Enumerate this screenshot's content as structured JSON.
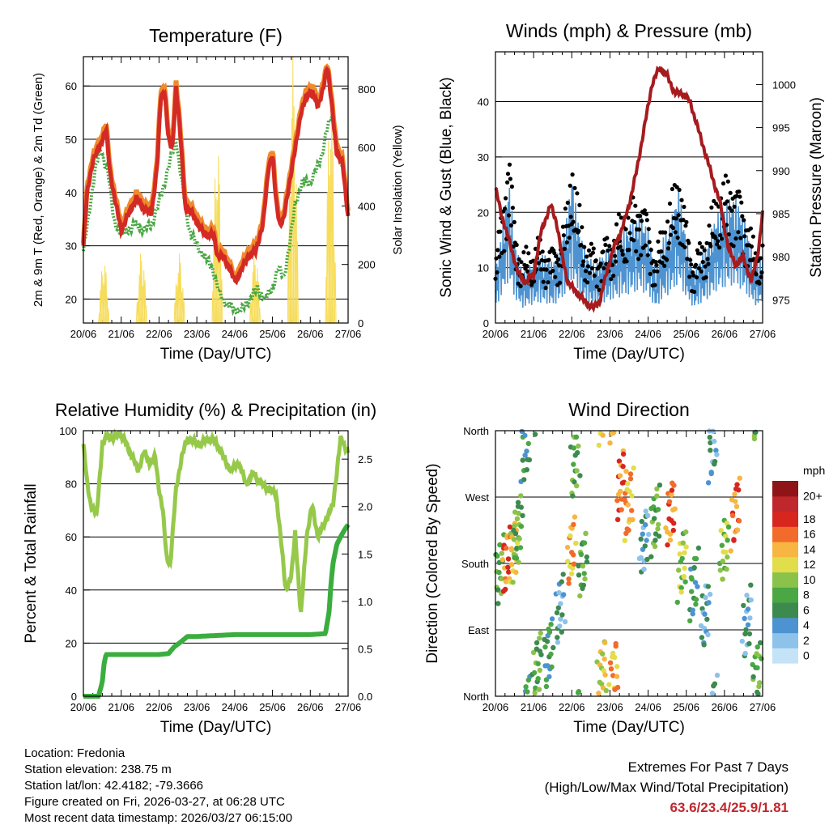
{
  "figure": {
    "footer": {
      "location": "Location: Fredonia",
      "elevation": "Station elevation: 238.75 m",
      "latlon": "Station lat/lon: 42.4182; -79.3666",
      "created": "Figure created on Fri, 2026-03-27, at 06:28 UTC",
      "recent": "Most recent data timestamp: 2026/03/27 06:15:00",
      "extremes_title": "Extremes For Past 7 Days",
      "extremes_sub": "(High/Low/Max Wind/Total Precipitation)",
      "extremes_values": "63.6/23.4/25.9/1.81"
    },
    "colors": {
      "t2m": "#d42a25",
      "t9m": "#f08a2c",
      "td": "#4aa744",
      "solar": "#f6dc59",
      "wind": "#4d93d1",
      "gust": "#000000",
      "pressure": "#a51b1e",
      "rh": "#96c94a",
      "precip": "#3bad3f",
      "extremes": "#c0272d"
    }
  },
  "chart_data": [
    {
      "id": "temperature",
      "type": "line",
      "title": "Temperature (F)",
      "xlabel": "Time (Day/UTC)",
      "ylabel": "2m & 9m T (Red, Orange) & 2m Td (Green)",
      "y2label": "Solar Insolation (Yellow)",
      "xlim": [
        0,
        7
      ],
      "ylim": [
        15.5,
        65.5
      ],
      "y2lim": [
        0,
        910
      ],
      "x_ticks": [
        "20/06",
        "21/06",
        "22/06",
        "23/06",
        "24/06",
        "25/06",
        "26/06",
        "27/06"
      ],
      "y_ticks": [
        20,
        30,
        40,
        50,
        60
      ],
      "y2_ticks": [
        0,
        200,
        400,
        600,
        800
      ],
      "grid": "horizontal",
      "series": [
        {
          "name": "2m T",
          "color": "#d42a25",
          "x": [
            0,
            0.1,
            0.25,
            0.4,
            0.5,
            0.6,
            0.7,
            0.85,
            1.0,
            1.2,
            1.4,
            1.6,
            1.8,
            1.95,
            2.05,
            2.15,
            2.25,
            2.35,
            2.45,
            2.55,
            2.7,
            2.9,
            3.1,
            3.3,
            3.45,
            3.55,
            3.7,
            3.85,
            4.0,
            4.15,
            4.35,
            4.55,
            4.75,
            4.9,
            5.0,
            5.1,
            5.2,
            5.3,
            5.45,
            5.6,
            5.75,
            5.9,
            6.05,
            6.2,
            6.35,
            6.45,
            6.55,
            6.7,
            6.85,
            7.0
          ],
          "values": [
            30,
            40,
            46,
            48,
            50,
            52,
            44,
            38,
            33,
            36,
            39,
            37,
            36,
            45,
            58,
            59,
            50,
            48,
            60,
            52,
            37,
            36,
            33,
            32,
            32,
            28,
            28,
            26,
            23.4,
            25,
            28,
            29,
            34,
            45,
            47,
            38,
            34,
            35,
            42,
            48,
            55,
            58,
            59,
            56,
            60,
            63.6,
            58,
            47,
            46,
            35
          ]
        },
        {
          "name": "9m T",
          "color": "#f08a2c",
          "x": [
            0,
            0.1,
            0.25,
            0.4,
            0.5,
            0.6,
            0.7,
            0.85,
            1.0,
            1.2,
            1.4,
            1.6,
            1.8,
            1.95,
            2.05,
            2.15,
            2.25,
            2.35,
            2.45,
            2.55,
            2.7,
            2.9,
            3.1,
            3.3,
            3.45,
            3.55,
            3.7,
            3.85,
            4.0,
            4.15,
            4.35,
            4.55,
            4.75,
            4.9,
            5.0,
            5.1,
            5.2,
            5.3,
            5.45,
            5.6,
            5.75,
            5.9,
            6.05,
            6.2,
            6.35,
            6.45,
            6.55,
            6.7,
            6.85,
            7.0
          ],
          "values": [
            30.5,
            41,
            47,
            49,
            51,
            53,
            45,
            39,
            34,
            37,
            40,
            38,
            37,
            46,
            59,
            60,
            51,
            49,
            61,
            53,
            38,
            37,
            34,
            33,
            33,
            29,
            29,
            27,
            24,
            26,
            29,
            30,
            35,
            46,
            48,
            39,
            35,
            36,
            43,
            49,
            56,
            59,
            60,
            57,
            61,
            64,
            59,
            48,
            47,
            36
          ]
        },
        {
          "name": "2m Td",
          "color": "#4aa744",
          "x": [
            0,
            0.15,
            0.3,
            0.45,
            0.55,
            0.65,
            0.8,
            1.0,
            1.2,
            1.4,
            1.6,
            1.8,
            2.0,
            2.15,
            2.3,
            2.45,
            2.6,
            2.8,
            3.0,
            3.2,
            3.4,
            3.6,
            3.8,
            4.0,
            4.2,
            4.4,
            4.6,
            4.8,
            5.0,
            5.15,
            5.3,
            5.45,
            5.6,
            5.8,
            6.0,
            6.15,
            6.3,
            6.45,
            6.6,
            6.75,
            6.9,
            7.0
          ],
          "values": [
            29,
            36,
            44,
            48,
            46,
            44,
            35,
            32,
            33,
            34,
            33,
            34,
            38,
            42,
            46,
            50,
            42,
            33,
            30,
            28,
            26,
            21,
            19,
            18,
            18,
            20,
            22,
            20,
            22,
            26,
            24,
            30,
            38,
            42,
            42,
            44,
            47,
            52,
            55,
            47,
            44,
            36
          ]
        }
      ],
      "solar": {
        "name": "Solar Insolation",
        "color": "#f6dc59",
        "days": [
          0,
          1,
          2,
          3,
          4,
          5,
          6
        ],
        "peaks": [
          220,
          250,
          240,
          620,
          250,
          910,
          800
        ]
      }
    },
    {
      "id": "winds",
      "type": "line",
      "title": "Winds (mph) & Pressure (mb)",
      "xlabel": "Time (Day/UTC)",
      "ylabel": "Sonic Wind & Gust (Blue, Black)",
      "y2label": "Station Pressure (Maroon)",
      "xlim": [
        0,
        7
      ],
      "ylim": [
        0,
        49
      ],
      "y2lim": [
        972.3,
        1003.8
      ],
      "x_ticks": [
        "20/06",
        "21/06",
        "22/06",
        "23/06",
        "24/06",
        "25/06",
        "26/06",
        "27/06"
      ],
      "y_ticks": [
        0,
        10,
        20,
        30,
        40
      ],
      "y2_ticks": [
        975,
        980,
        985,
        990,
        995,
        1000
      ],
      "grid": "horizontal",
      "wind": {
        "name": "Sonic Wind",
        "color": "#4d93d1",
        "x": [
          0,
          0.2,
          0.35,
          0.5,
          0.7,
          0.9,
          1.1,
          1.3,
          1.5,
          1.7,
          1.9,
          2.0,
          2.1,
          2.25,
          2.4,
          2.6,
          2.8,
          3.0,
          3.2,
          3.4,
          3.6,
          3.8,
          4.0,
          4.2,
          4.4,
          4.6,
          4.8,
          5.0,
          5.2,
          5.4,
          5.6,
          5.8,
          6.0,
          6.2,
          6.4,
          6.6,
          6.8,
          7.0
        ],
        "values": [
          6,
          12,
          17,
          10,
          6,
          7,
          8,
          8,
          7,
          9,
          13,
          18,
          14,
          10,
          8,
          7,
          8,
          9,
          10,
          11,
          12,
          13,
          11,
          6,
          10,
          12,
          16,
          10,
          6,
          8,
          10,
          13,
          14,
          15,
          14,
          11,
          7,
          8
        ]
      },
      "gust": {
        "name": "Gust",
        "color": "#000000",
        "x": [
          0,
          0.2,
          0.35,
          0.5,
          0.7,
          0.9,
          1.1,
          1.3,
          1.5,
          1.7,
          1.9,
          2.0,
          2.1,
          2.25,
          2.4,
          2.6,
          2.8,
          3.0,
          3.2,
          3.4,
          3.6,
          3.8,
          4.0,
          4.2,
          4.4,
          4.6,
          4.8,
          5.0,
          5.2,
          5.4,
          5.6,
          5.8,
          6.0,
          6.2,
          6.4,
          6.6,
          6.8,
          7.0
        ],
        "values": [
          8,
          18,
          25.9,
          14,
          9,
          10,
          11,
          11,
          10,
          12,
          17,
          24,
          19,
          14,
          11,
          10,
          11,
          12,
          14,
          15,
          17,
          18,
          15,
          9,
          14,
          17,
          22,
          14,
          9,
          11,
          14,
          18,
          20,
          21,
          19,
          15,
          10,
          11
        ]
      },
      "pressure": {
        "name": "Station Pressure",
        "color": "#a51b1e",
        "x": [
          0,
          0.15,
          0.35,
          0.6,
          0.8,
          1.0,
          1.2,
          1.45,
          1.6,
          1.75,
          1.9,
          2.1,
          2.3,
          2.55,
          2.75,
          2.9,
          3.1,
          3.3,
          3.5,
          3.7,
          3.9,
          4.1,
          4.3,
          4.5,
          4.7,
          4.9,
          5.1,
          5.3,
          5.5,
          5.7,
          5.9,
          6.1,
          6.3,
          6.5,
          6.7,
          6.9,
          7.0
        ],
        "values": [
          988,
          985,
          982,
          978,
          977,
          978,
          983,
          986,
          984,
          980,
          977,
          976,
          975,
          974,
          975,
          978,
          981,
          983,
          986,
          990,
          995,
          1000,
          1002,
          1001,
          999,
          999,
          998,
          995,
          992,
          989,
          986,
          981,
          979,
          980,
          977,
          981,
          985
        ]
      }
    },
    {
      "id": "humidity",
      "type": "line",
      "title": "Relative Humidity (%) & Precipitation (in)",
      "xlabel": "Time (Day/UTC)",
      "ylabel": "Percent & Total Rainfall",
      "xlim": [
        0,
        7
      ],
      "ylim": [
        0,
        100
      ],
      "y2lim": [
        0,
        2.8
      ],
      "x_ticks": [
        "20/06",
        "21/06",
        "22/06",
        "23/06",
        "24/06",
        "25/06",
        "26/06",
        "27/06"
      ],
      "y_ticks": [
        0,
        20,
        40,
        60,
        80,
        100
      ],
      "y2_ticks": [
        0.0,
        0.5,
        1.0,
        1.5,
        2.0,
        2.5
      ],
      "grid": "horizontal",
      "series": [
        {
          "name": "Relative Humidity",
          "color": "#96c94a",
          "x": [
            0,
            0.1,
            0.2,
            0.35,
            0.5,
            0.65,
            0.8,
            0.95,
            1.1,
            1.3,
            1.45,
            1.6,
            1.75,
            1.9,
            2.0,
            2.1,
            2.2,
            2.3,
            2.45,
            2.6,
            2.75,
            2.9,
            3.1,
            3.3,
            3.5,
            3.7,
            3.9,
            4.1,
            4.3,
            4.5,
            4.7,
            4.9,
            5.1,
            5.25,
            5.35,
            5.5,
            5.6,
            5.75,
            5.9,
            6.05,
            6.2,
            6.4,
            6.6,
            6.8,
            7.0
          ],
          "values": [
            95,
            80,
            72,
            68,
            95,
            98,
            97,
            99,
            96,
            90,
            85,
            92,
            88,
            90,
            78,
            70,
            52,
            50,
            78,
            90,
            97,
            96,
            95,
            97,
            96,
            90,
            85,
            88,
            80,
            84,
            80,
            78,
            76,
            55,
            40,
            45,
            62,
            30,
            60,
            72,
            60,
            66,
            72,
            97,
            92
          ]
        },
        {
          "name": "Total Precipitation",
          "color": "#3bad3f",
          "axis": "y2",
          "x": [
            0,
            0.4,
            0.5,
            0.55,
            0.6,
            1.0,
            2.0,
            2.25,
            2.4,
            2.6,
            2.75,
            3.0,
            4.0,
            5.0,
            6.0,
            6.4,
            6.5,
            6.55,
            6.6,
            6.7,
            6.8,
            6.9,
            7.0
          ],
          "values": [
            0,
            0,
            0.15,
            0.35,
            0.44,
            0.44,
            0.44,
            0.45,
            0.52,
            0.58,
            0.63,
            0.63,
            0.65,
            0.65,
            0.65,
            0.66,
            0.9,
            1.2,
            1.4,
            1.6,
            1.68,
            1.75,
            1.81
          ]
        }
      ]
    },
    {
      "id": "direction",
      "type": "scatter",
      "title": "Wind Direction",
      "xlabel": "Time (Day/UTC)",
      "ylabel": "Direction (Colored By Speed)",
      "xlim": [
        0,
        7
      ],
      "ylim": [
        0,
        360
      ],
      "x_ticks": [
        "20/06",
        "21/06",
        "22/06",
        "23/06",
        "24/06",
        "25/06",
        "26/06",
        "27/06"
      ],
      "y_tick_values": [
        0,
        90,
        180,
        270,
        360
      ],
      "y_ticks": [
        "North",
        "East",
        "South",
        "West",
        "North"
      ],
      "grid": "horizontal",
      "colorbar": {
        "title": "mph",
        "labels": [
          "0",
          "2",
          "4",
          "6",
          "8",
          "10",
          "12",
          "14",
          "16",
          "18",
          "20+"
        ],
        "colors": [
          "#c5e3f6",
          "#8dc2ea",
          "#4d93d1",
          "#3d8a4f",
          "#4aa744",
          "#8bc34a",
          "#e2dd4a",
          "#f7b541",
          "#f26b2b",
          "#d7261e",
          "#c0272d",
          "#8e1418"
        ]
      },
      "clusters": [
        {
          "x": 0.1,
          "dir": 170,
          "speed": 8
        },
        {
          "x": 0.3,
          "dir": 185,
          "speed": 16
        },
        {
          "x": 0.5,
          "dir": 200,
          "speed": 12
        },
        {
          "x": 0.6,
          "dir": 230,
          "speed": 8
        },
        {
          "x": 0.8,
          "dir": 340,
          "speed": 6
        },
        {
          "x": 1.1,
          "dir": 40,
          "speed": 8
        },
        {
          "x": 1.4,
          "dir": 60,
          "speed": 6
        },
        {
          "x": 1.7,
          "dir": 120,
          "speed": 4
        },
        {
          "x": 2.0,
          "dir": 200,
          "speed": 14
        },
        {
          "x": 2.1,
          "dir": 320,
          "speed": 8
        },
        {
          "x": 2.3,
          "dir": 180,
          "speed": 8
        },
        {
          "x": 2.8,
          "dir": 30,
          "speed": 12
        },
        {
          "x": 3.1,
          "dir": 30,
          "speed": 14
        },
        {
          "x": 3.3,
          "dir": 290,
          "speed": 16
        },
        {
          "x": 3.5,
          "dir": 260,
          "speed": 14
        },
        {
          "x": 3.9,
          "dir": 210,
          "speed": 4
        },
        {
          "x": 4.2,
          "dir": 240,
          "speed": 8
        },
        {
          "x": 4.6,
          "dir": 250,
          "speed": 16
        },
        {
          "x": 4.9,
          "dir": 180,
          "speed": 10
        },
        {
          "x": 5.2,
          "dir": 150,
          "speed": 6
        },
        {
          "x": 5.5,
          "dir": 110,
          "speed": 4
        },
        {
          "x": 5.7,
          "dir": 340,
          "speed": 4
        },
        {
          "x": 6.0,
          "dir": 200,
          "speed": 10
        },
        {
          "x": 6.3,
          "dir": 250,
          "speed": 16
        },
        {
          "x": 6.6,
          "dir": 100,
          "speed": 4
        },
        {
          "x": 6.85,
          "dir": 30,
          "speed": 8
        }
      ]
    }
  ]
}
